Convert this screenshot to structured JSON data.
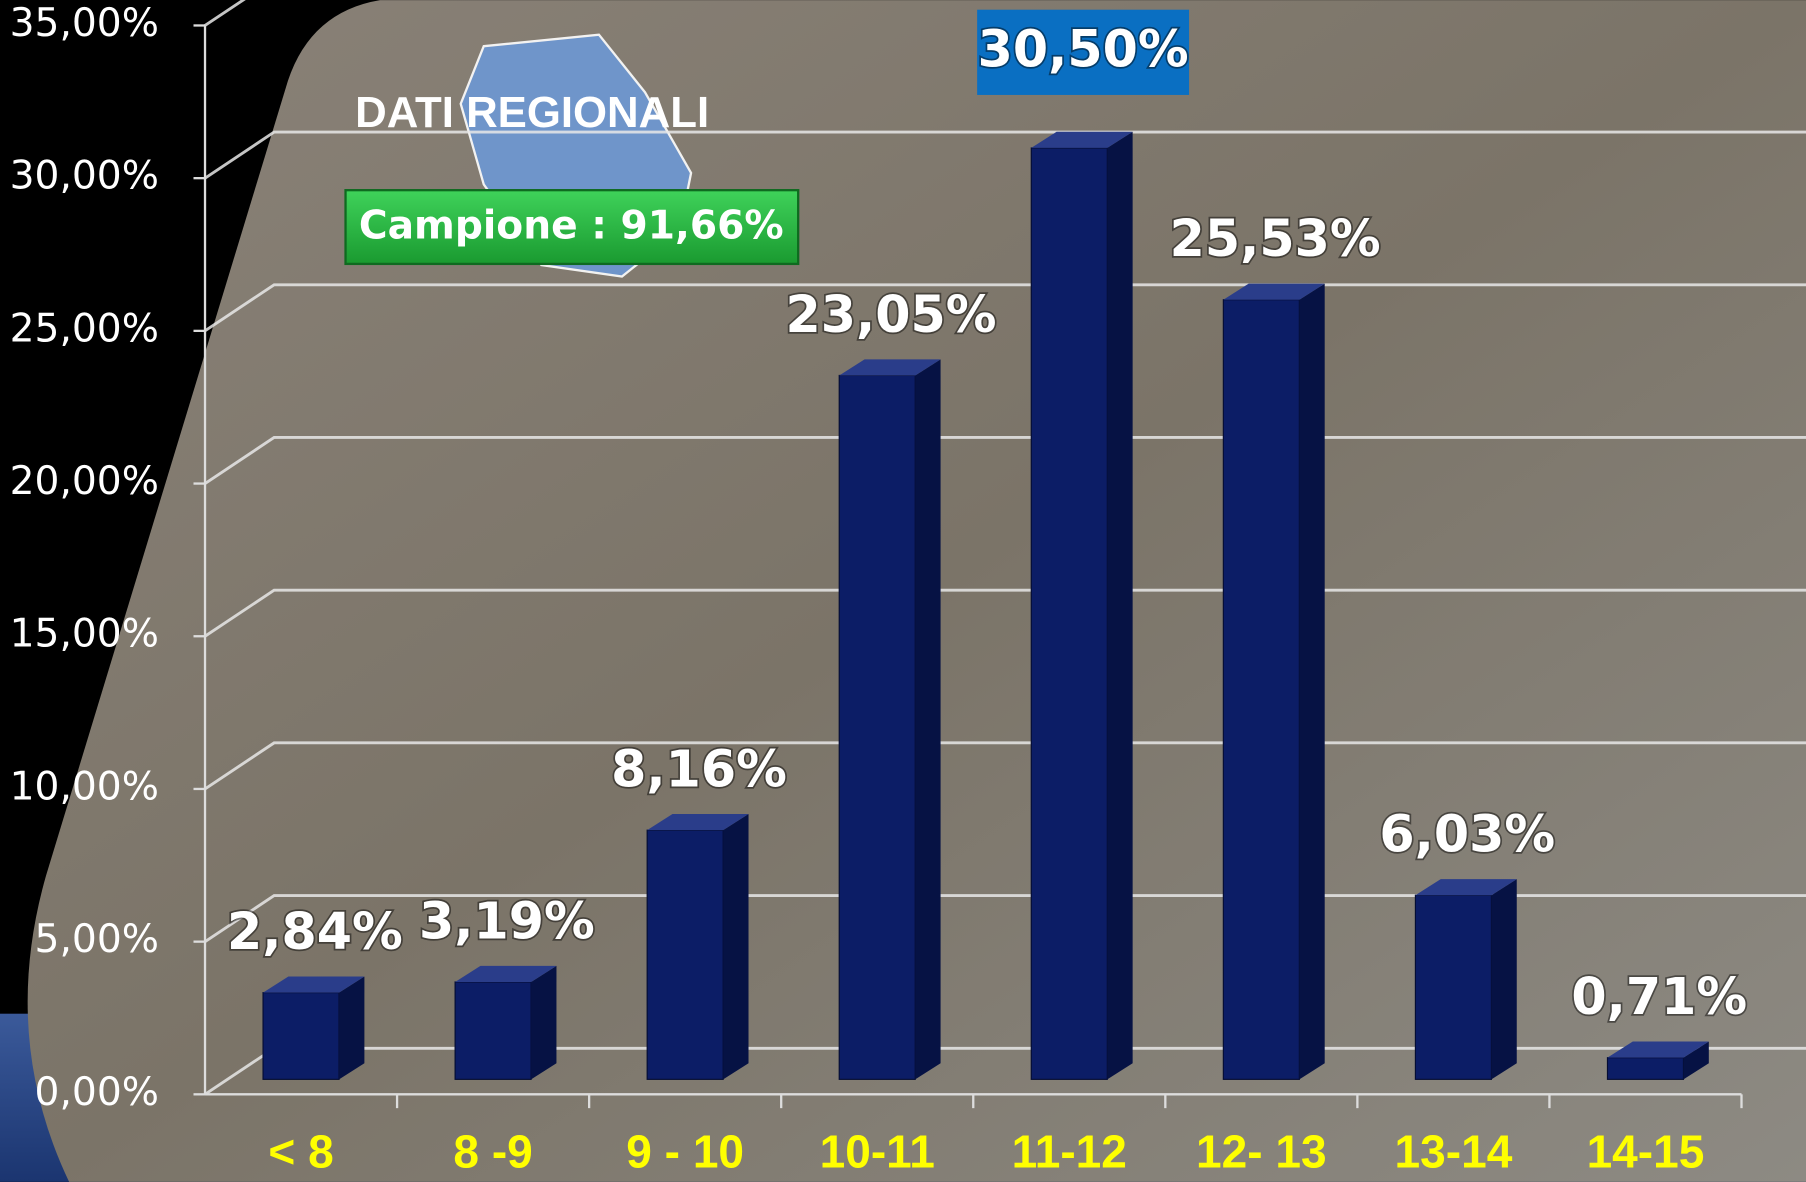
{
  "chart_data": {
    "type": "bar",
    "title": "DATI REGIONALI",
    "subtitle": "Campione : 91,66%",
    "categories": [
      "< 8",
      "8 -9",
      "9 - 10",
      "10-11",
      "11-12",
      "12- 13",
      "13-14",
      "14-15"
    ],
    "values": [
      2.84,
      3.19,
      8.16,
      23.05,
      30.5,
      25.53,
      6.03,
      0.71
    ],
    "value_labels": [
      "2,84%",
      "3,19%",
      "8,16%",
      "23,05%",
      "30,50%",
      "25,53%",
      "6,03%",
      "0,71%"
    ],
    "color": "#0c1d66",
    "ylim": [
      0,
      35
    ],
    "yticks": [
      {
        "value": 0,
        "label": "0,00%"
      },
      {
        "value": 5,
        "label": "5,00%"
      },
      {
        "value": 10,
        "label": "10,00%"
      },
      {
        "value": 15,
        "label": "15,00%"
      },
      {
        "value": 20,
        "label": "20,00%"
      },
      {
        "value": 25,
        "label": "25,00%"
      },
      {
        "value": 30,
        "label": "30,00%"
      },
      {
        "value": 35,
        "label": "35,00%"
      }
    ],
    "grid": true
  }
}
